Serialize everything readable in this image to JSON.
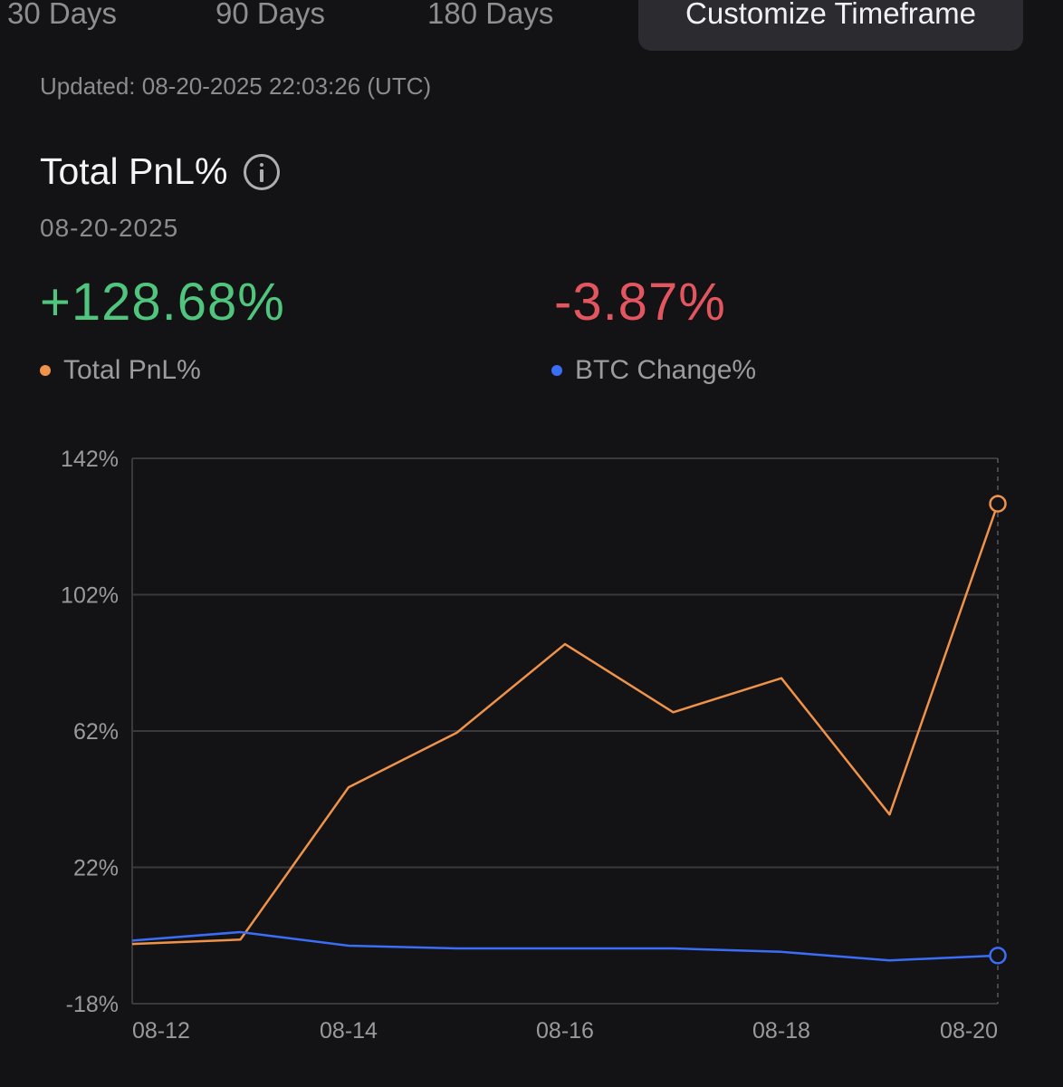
{
  "tabs": [
    {
      "label": "30 Days"
    },
    {
      "label": "90 Days"
    },
    {
      "label": "180 Days"
    },
    {
      "label": "Customize Timeframe",
      "active": true
    }
  ],
  "updated_text": "Updated: 08-20-2025 22:03:26 (UTC)",
  "header": {
    "title": "Total PnL%",
    "info_icon": "info-icon",
    "date": "08-20-2025"
  },
  "summary": {
    "total_pnl_value": "+128.68%",
    "btc_change_value": "-3.87%"
  },
  "legend": {
    "total_pnl_label": "Total PnL%",
    "btc_change_label": "BTC Change%"
  },
  "colors": {
    "background": "#131214",
    "pnl_series": "#f0934a",
    "btc_series": "#3a6ef6",
    "positive": "#4fc57e",
    "negative": "#e4565f"
  },
  "chart_data": {
    "type": "line",
    "x": [
      "08-12",
      "08-13",
      "08-14",
      "08-15",
      "08-16",
      "08-17",
      "08-18",
      "08-19",
      "08-20"
    ],
    "x_tick_labels": [
      "08-12",
      "08-14",
      "08-16",
      "08-18",
      "08-20"
    ],
    "y_tick_labels": [
      "142%",
      "102%",
      "62%",
      "22%",
      "-18%"
    ],
    "ylim": [
      -18,
      142
    ],
    "grid": true,
    "series": [
      {
        "name": "Total PnL%",
        "color": "#f0934a",
        "values": [
          -0.5,
          0.8,
          45.5,
          61.5,
          87.5,
          67.5,
          77.5,
          37.5,
          128.68
        ]
      },
      {
        "name": "BTC Change%",
        "color": "#3a6ef6",
        "values": [
          0.5,
          3.0,
          -1.0,
          -1.8,
          -1.8,
          -1.8,
          -2.8,
          -5.3,
          -3.87
        ]
      }
    ]
  }
}
